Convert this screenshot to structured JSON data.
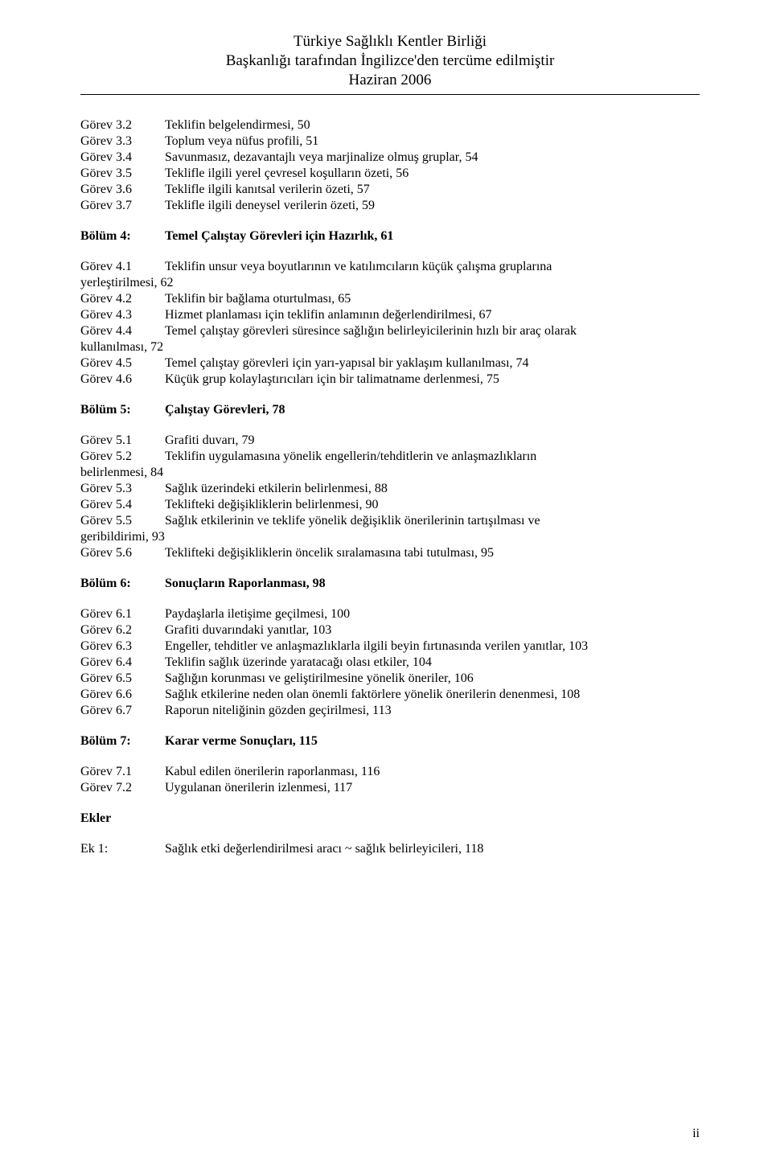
{
  "header": {
    "line1": "Türkiye Sağlıklı Kentler Birliği",
    "line2": "Başkanlığı tarafından İngilizce'den tercüme edilmiştir",
    "line3": "Haziran 2006"
  },
  "section3": {
    "items": [
      {
        "label": "Görev 3.2",
        "text": "Teklifin belgelendirmesi, 50"
      },
      {
        "label": "Görev 3.3",
        "text": "Toplum veya nüfus profili, 51"
      },
      {
        "label": "Görev 3.4",
        "text": "Savunmasız, dezavantajlı veya marjinalize olmuş gruplar, 54"
      },
      {
        "label": "Görev 3.5",
        "text": "Teklifle ilgili yerel çevresel koşulların özeti, 56"
      },
      {
        "label": "Görev 3.6",
        "text": "Teklifle ilgili kanıtsal verilerin özeti, 57"
      },
      {
        "label": "Görev 3.7",
        "text": "Teklifle ilgili deneysel verilerin özeti, 59"
      }
    ]
  },
  "section4": {
    "heading_label": "Bölüm 4:",
    "heading_text": "Temel Çalıştay Görevleri için Hazırlık, 61",
    "items": [
      {
        "label": "Görev 4.1",
        "text": "Teklifin unsur veya boyutlarının ve katılımcıların küçük çalışma gruplarına",
        "cont": "yerleştirilmesi, 62"
      },
      {
        "label": "Görev 4.2",
        "text": "Teklifin bir bağlama oturtulması, 65"
      },
      {
        "label": "Görev 4.3",
        "text": "Hizmet planlaması için teklifin anlamının değerlendirilmesi, 67"
      },
      {
        "label": "Görev 4.4",
        "text": "Temel çalıştay görevleri süresince sağlığın belirleyicilerinin hızlı bir araç olarak",
        "cont": "kullanılması, 72"
      },
      {
        "label": "Görev 4.5",
        "text": "Temel çalıştay görevleri için yarı-yapısal bir yaklaşım kullanılması, 74"
      },
      {
        "label": "Görev 4.6",
        "text": "Küçük grup kolaylaştırıcıları için bir talimatname derlenmesi, 75"
      }
    ]
  },
  "section5": {
    "heading_label": "Bölüm 5:",
    "heading_text": "Çalıştay Görevleri, 78",
    "items": [
      {
        "label": "Görev 5.1",
        "text": "Grafiti duvarı, 79"
      },
      {
        "label": "Görev 5.2",
        "text": "Teklifin uygulamasına yönelik engellerin/tehditlerin ve anlaşmazlıkların",
        "cont": "belirlenmesi, 84"
      },
      {
        "label": "Görev 5.3",
        "text": "Sağlık üzerindeki etkilerin belirlenmesi, 88"
      },
      {
        "label": "Görev 5.4",
        "text": "Teklifteki değişikliklerin belirlenmesi, 90"
      },
      {
        "label": "Görev 5.5",
        "text": "Sağlık etkilerinin ve teklife yönelik değişiklik önerilerinin tartışılması ve",
        "cont": "geribildirimi, 93"
      },
      {
        "label": "Görev 5.6",
        "text": "Teklifteki değişikliklerin öncelik sıralamasına tabi tutulması, 95"
      }
    ]
  },
  "section6": {
    "heading_label": "Bölüm 6:",
    "heading_text": "Sonuçların Raporlanması, 98",
    "items": [
      {
        "label": "Görev 6.1",
        "text": "Paydaşlarla iletişime geçilmesi, 100"
      },
      {
        "label": "Görev 6.2",
        "text": "Grafiti duvarındaki yanıtlar, 103"
      },
      {
        "label": "Görev 6.3",
        "text": "Engeller, tehditler ve anlaşmazlıklarla ilgili beyin fırtınasında verilen yanıtlar, 103"
      },
      {
        "label": "Görev 6.4",
        "text": "Teklifin sağlık üzerinde yaratacağı olası etkiler, 104"
      },
      {
        "label": "Görev 6.5",
        "text": "Sağlığın korunması ve geliştirilmesine yönelik öneriler, 106"
      },
      {
        "label": "Görev 6.6",
        "text": "Sağlık etkilerine neden olan önemli faktörlere yönelik önerilerin denenmesi, 108"
      },
      {
        "label": "Görev 6.7",
        "text": "Raporun niteliğinin gözden geçirilmesi, 113"
      }
    ]
  },
  "section7": {
    "heading_label": "Bölüm 7:",
    "heading_text": "Karar verme Sonuçları, 115",
    "items": [
      {
        "label": "Görev 7.1",
        "text": "Kabul edilen önerilerin raporlanması, 116"
      },
      {
        "label": "Görev 7.2",
        "text": "Uygulanan önerilerin izlenmesi, 117"
      }
    ]
  },
  "ekler": {
    "heading": "Ekler",
    "items": [
      {
        "label": "Ek 1:",
        "text": "Sağlık etki değerlendirilmesi aracı ~ sağlık belirleyicileri, 118"
      }
    ]
  },
  "page_number": "ii"
}
